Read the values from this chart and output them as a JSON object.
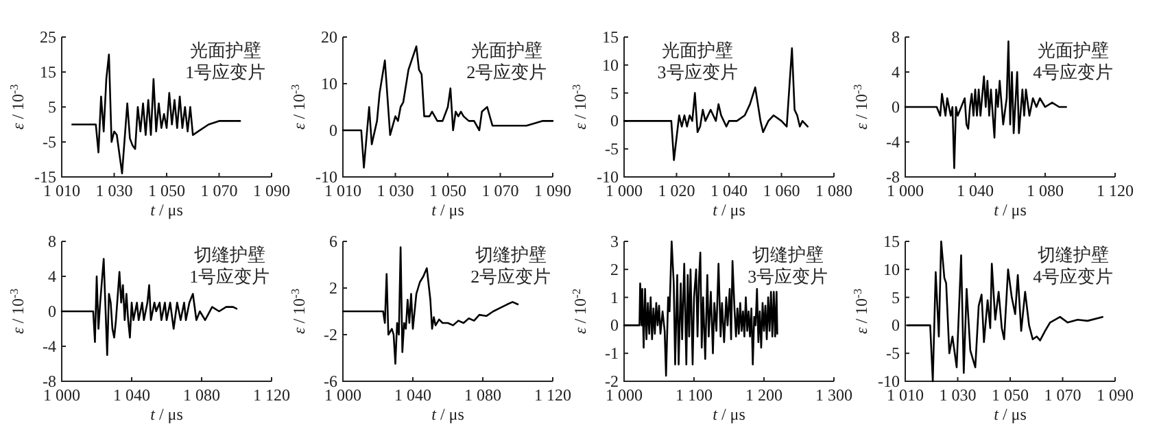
{
  "chart_data": [
    {
      "type": "line",
      "xlabel": "*t* / μs",
      "ylabel": "*ε* / 10$^{-3}$",
      "annotations": [
        "光面护壁",
        "1号应变片"
      ],
      "color": "#000000",
      "xlim": [
        1010,
        1090
      ],
      "ylim": [
        -15,
        25
      ],
      "xticks": [
        {
          "value": 1010,
          "label": "1 010"
        },
        {
          "value": 1030,
          "label": "1 030"
        },
        {
          "value": 1050,
          "label": "1 050"
        },
        {
          "value": 1070,
          "label": "1 070"
        },
        {
          "value": 1090,
          "label": "1 090"
        }
      ],
      "yticks": [
        -15,
        -5,
        5,
        15,
        25
      ],
      "x": [
        1014,
        1023,
        1024,
        1025,
        1026,
        1027,
        1028,
        1029,
        1030,
        1031,
        1033,
        1035,
        1036,
        1037,
        1038,
        1039,
        1040,
        1041,
        1042,
        1043,
        1044,
        1045,
        1046,
        1047,
        1048,
        1049,
        1050,
        1051,
        1052,
        1053,
        1054,
        1055,
        1056,
        1057,
        1058,
        1059,
        1060,
        1062,
        1066,
        1070,
        1074,
        1078
      ],
      "values": [
        0,
        0,
        -8,
        8,
        -2,
        13,
        20,
        -5,
        -2,
        -3,
        -14,
        6,
        -4,
        -6,
        -7,
        5,
        -2,
        6,
        -3,
        7,
        -3,
        13,
        -2,
        6,
        -1,
        3,
        -1,
        9,
        0,
        7,
        -1,
        8,
        -1,
        5,
        -2,
        5,
        -3,
        -2,
        0,
        1,
        1,
        1
      ]
    },
    {
      "type": "line",
      "xlabel": "*t* / μs",
      "ylabel": "*ε* / 10$^{-3}$",
      "annotations": [
        "光面护壁",
        "2号应变片"
      ],
      "color": "#000000",
      "xlim": [
        1010,
        1090
      ],
      "ylim": [
        -10,
        20
      ],
      "xticks": [
        {
          "value": 1010,
          "label": "1 010"
        },
        {
          "value": 1030,
          "label": "1 030"
        },
        {
          "value": 1050,
          "label": "1 050"
        },
        {
          "value": 1070,
          "label": "1 070"
        },
        {
          "value": 1090,
          "label": "1 090"
        }
      ],
      "yticks": [
        -10,
        0,
        10,
        20
      ],
      "x": [
        1010,
        1017,
        1018,
        1020,
        1021,
        1023,
        1024,
        1026,
        1028,
        1030,
        1031,
        1032,
        1033,
        1035,
        1038,
        1039,
        1040,
        1041,
        1043,
        1044,
        1046,
        1048,
        1050,
        1051,
        1052,
        1053,
        1054,
        1055,
        1056,
        1058,
        1060,
        1062,
        1063,
        1065,
        1067,
        1072,
        1080,
        1086,
        1090
      ],
      "values": [
        0,
        0,
        -8,
        5,
        -3,
        2,
        8,
        15,
        -1,
        3,
        2,
        5,
        6,
        13,
        18,
        13,
        12,
        3,
        3,
        4,
        2,
        2,
        5,
        9,
        0,
        4,
        3,
        4,
        3,
        2,
        2,
        0,
        4,
        5,
        1,
        1,
        1,
        2,
        2
      ]
    },
    {
      "type": "line",
      "xlabel": "*t* / μs",
      "ylabel": "*ε* / 10$^{-3}$",
      "annotations": [
        "光面护壁",
        "3号应变片"
      ],
      "color": "#000000",
      "xlim": [
        1000,
        1080
      ],
      "ylim": [
        -10,
        15
      ],
      "xticks": [
        {
          "value": 1000,
          "label": "1 000"
        },
        {
          "value": 1020,
          "label": "1 020"
        },
        {
          "value": 1040,
          "label": "1 040"
        },
        {
          "value": 1060,
          "label": "1 060"
        },
        {
          "value": 1080,
          "label": "1 080"
        }
      ],
      "yticks": [
        -10,
        -5,
        0,
        5,
        10,
        15
      ],
      "x": [
        1000,
        1018,
        1019,
        1020,
        1021,
        1022,
        1023,
        1024,
        1025,
        1026,
        1027,
        1028,
        1029,
        1030,
        1031,
        1033,
        1034,
        1035,
        1036,
        1037,
        1038,
        1039,
        1040,
        1043,
        1046,
        1048,
        1050,
        1051,
        1052,
        1053,
        1054,
        1055,
        1057,
        1060,
        1062,
        1063,
        1064,
        1065,
        1066,
        1067,
        1068,
        1070
      ],
      "values": [
        0,
        0,
        -7,
        -3,
        1,
        -1,
        1,
        -1,
        1,
        0,
        5,
        -2,
        -1,
        2,
        0,
        2,
        1,
        0,
        3,
        1,
        0,
        -1,
        0,
        0,
        1,
        3,
        6,
        3,
        0,
        -2,
        -1,
        0,
        1,
        0,
        -1,
        6,
        13,
        2,
        1,
        -1,
        0,
        -1
      ]
    },
    {
      "type": "line",
      "xlabel": "*t* / μs",
      "ylabel": "*ε* / 10$^{-3}$",
      "annotations": [
        "光面护壁",
        "4号应变片"
      ],
      "color": "#000000",
      "xlim": [
        1000,
        1120
      ],
      "ylim": [
        -8,
        8
      ],
      "xticks": [
        {
          "value": 1000,
          "label": "1 000"
        },
        {
          "value": 1040,
          "label": "1 040"
        },
        {
          "value": 1080,
          "label": "1 080"
        },
        {
          "value": 1120,
          "label": "1 120"
        }
      ],
      "yticks": [
        -8,
        -4,
        0,
        4,
        8
      ],
      "x": [
        1000,
        1018,
        1020,
        1021,
        1023,
        1024,
        1026,
        1027,
        1028,
        1029,
        1030,
        1032,
        1034,
        1035,
        1036,
        1037,
        1038,
        1039,
        1040,
        1041,
        1042,
        1043,
        1045,
        1046,
        1047,
        1048,
        1049,
        1051,
        1052,
        1053,
        1054,
        1056,
        1058,
        1059,
        1060,
        1061,
        1062,
        1064,
        1065,
        1067,
        1068,
        1069,
        1071,
        1073,
        1075,
        1077,
        1080,
        1084,
        1088,
        1092
      ],
      "values": [
        0,
        0,
        -1,
        1.5,
        -1,
        1,
        -1,
        0,
        -7,
        0,
        -1,
        0,
        1,
        -2,
        -2.5,
        0,
        1.5,
        -1,
        2,
        -1,
        2,
        -1,
        3.5,
        0,
        3,
        -1,
        2,
        -3.5,
        2,
        0,
        3,
        -2,
        1,
        7.5,
        -2,
        4,
        -3,
        4,
        -3,
        2,
        -1,
        2,
        -1,
        1,
        0,
        1,
        0,
        0.5,
        0,
        0
      ]
    },
    {
      "type": "line",
      "xlabel": "*t* / μs",
      "ylabel": "*ε* / 10$^{-3}$",
      "annotations": [
        "切缝护壁",
        "1号应变片"
      ],
      "color": "#000000",
      "xlim": [
        1000,
        1120
      ],
      "ylim": [
        -8,
        8
      ],
      "xticks": [
        {
          "value": 1000,
          "label": "1 000"
        },
        {
          "value": 1040,
          "label": "1 040"
        },
        {
          "value": 1080,
          "label": "1 080"
        },
        {
          "value": 1120,
          "label": "1 120"
        }
      ],
      "yticks": [
        -8,
        -4,
        0,
        4,
        8
      ],
      "x": [
        1000,
        1018,
        1019,
        1020,
        1021,
        1022,
        1024,
        1026,
        1027,
        1028,
        1029,
        1030,
        1031,
        1033,
        1034,
        1035,
        1036,
        1037,
        1038,
        1039,
        1040,
        1041,
        1043,
        1044,
        1046,
        1047,
        1049,
        1050,
        1051,
        1053,
        1054,
        1056,
        1057,
        1059,
        1060,
        1062,
        1064,
        1066,
        1068,
        1070,
        1071,
        1073,
        1075,
        1077,
        1079,
        1082,
        1086,
        1090,
        1094,
        1098,
        1100
      ],
      "values": [
        0,
        0,
        -3.5,
        4,
        -2,
        1,
        6,
        -5,
        2,
        1,
        -2,
        -3,
        -1,
        4.5,
        1,
        3,
        -1,
        2,
        -1,
        -3,
        1,
        -1,
        1,
        -1,
        1,
        -1,
        1,
        3,
        -1,
        1,
        0,
        1,
        -1,
        1,
        -1,
        1,
        -2,
        1,
        -1,
        1,
        -1,
        1,
        2,
        -1,
        0,
        -1,
        0.5,
        0,
        0.5,
        0.5,
        0.3
      ]
    },
    {
      "type": "line",
      "xlabel": "*t* / μs",
      "ylabel": "*ε* / 10$^{-3}$",
      "annotations": [
        "切缝护壁",
        "2号应变片"
      ],
      "color": "#000000",
      "xlim": [
        1000,
        1120
      ],
      "ylim": [
        -6,
        6
      ],
      "xticks": [
        {
          "value": 1000,
          "label": "1 000"
        },
        {
          "value": 1040,
          "label": "1 040"
        },
        {
          "value": 1080,
          "label": "1 080"
        },
        {
          "value": 1120,
          "label": "1 120"
        }
      ],
      "yticks": [
        -6,
        -2,
        2,
        6
      ],
      "x": [
        1000,
        1023,
        1024,
        1025,
        1026,
        1028,
        1029,
        1030,
        1031,
        1032,
        1033,
        1034,
        1035,
        1036,
        1037,
        1038,
        1039,
        1040,
        1041,
        1042,
        1044,
        1046,
        1048,
        1050,
        1051,
        1052,
        1053,
        1055,
        1057,
        1060,
        1063,
        1066,
        1069,
        1072,
        1075,
        1078,
        1082,
        1086,
        1090,
        1094,
        1097,
        1100
      ],
      "values": [
        0,
        0,
        -1,
        3.2,
        -2,
        -1.5,
        -2,
        -4.5,
        -1,
        -2,
        5.5,
        -3.5,
        -1,
        -1.5,
        1,
        -1,
        1.5,
        -1.5,
        0,
        1.5,
        2.5,
        3,
        3.7,
        1,
        -1.5,
        -0.5,
        -1.2,
        -0.7,
        -1,
        -1,
        -1.2,
        -0.8,
        -1,
        -0.6,
        -0.8,
        -0.3,
        -0.4,
        0,
        0.3,
        0.6,
        0.8,
        0.6
      ]
    },
    {
      "type": "line",
      "xlabel": "*t* / μs",
      "ylabel": "*ε* / 10$^{-2}$",
      "annotations": [
        "切缝护壁",
        "3号应变片"
      ],
      "color": "#000000",
      "xlim": [
        1000,
        1300
      ],
      "ylim": [
        -2,
        3
      ],
      "xticks": [
        {
          "value": 1000,
          "label": "1 000"
        },
        {
          "value": 1100,
          "label": "1 100"
        },
        {
          "value": 1200,
          "label": "1 200"
        },
        {
          "value": 1300,
          "label": "1 300"
        }
      ],
      "yticks": [
        -2,
        -1,
        0,
        1,
        2,
        3
      ],
      "x": [
        1000,
        1022,
        1023,
        1025,
        1026,
        1028,
        1030,
        1032,
        1034,
        1036,
        1038,
        1040,
        1042,
        1044,
        1046,
        1048,
        1050,
        1052,
        1055,
        1058,
        1060,
        1063,
        1065,
        1068,
        1071,
        1073,
        1076,
        1078,
        1081,
        1083,
        1086,
        1089,
        1091,
        1093,
        1095,
        1098,
        1100,
        1103,
        1105,
        1107,
        1109,
        1111,
        1113,
        1116,
        1119,
        1121,
        1124,
        1127,
        1129,
        1132,
        1135,
        1138,
        1140,
        1143,
        1146,
        1148,
        1151,
        1153,
        1155,
        1158,
        1160,
        1162,
        1164,
        1166,
        1168,
        1170,
        1172,
        1174,
        1176,
        1178,
        1180,
        1182,
        1184,
        1186,
        1188,
        1190,
        1192,
        1194,
        1196,
        1198,
        1200,
        1202,
        1204,
        1206,
        1208,
        1210,
        1212,
        1214,
        1216,
        1218,
        1219
      ],
      "values": [
        0,
        0,
        1.5,
        0,
        1.3,
        -0.8,
        1.3,
        -0.5,
        0.8,
        -0.3,
        1,
        -0.5,
        0.6,
        -0.3,
        0.8,
        0,
        0.7,
        -0.3,
        0.5,
        -0.2,
        -1.8,
        1,
        0.5,
        3,
        1.5,
        -1.4,
        1.8,
        -1.4,
        1.5,
        -0.5,
        2.2,
        -1.4,
        1.8,
        -0.4,
        2,
        -1.4,
        1,
        2,
        -0.4,
        1.6,
        2.6,
        -0.8,
        1,
        -1.2,
        1.8,
        -0.4,
        1.2,
        -1,
        0.8,
        -0.2,
        2.2,
        -0.4,
        0.8,
        -0.6,
        1,
        0,
        1.3,
        -0.5,
        2.3,
        0.5,
        -0.4,
        0.6,
        -0.3,
        0.8,
        -0.2,
        0.5,
        -0.4,
        1,
        -0.2,
        0.5,
        -0.4,
        0.6,
        -1.4,
        0.3,
        0,
        1.3,
        -0.6,
        0.5,
        -0.8,
        0.8,
        -0.2,
        0.7,
        -0.5,
        1,
        -0.2,
        1.2,
        -0.4,
        1.2,
        -0.4,
        1.2,
        -0.3
      ]
    },
    {
      "type": "line",
      "xlabel": "*t* / μs",
      "ylabel": "*ε* / 10$^{-3}$",
      "annotations": [
        "切缝护壁",
        "4号应变片"
      ],
      "color": "#000000",
      "xlim": [
        1010,
        1090
      ],
      "ylim": [
        -10,
        15
      ],
      "xticks": [
        {
          "value": 1010,
          "label": "1 010"
        },
        {
          "value": 1030,
          "label": "1 030"
        },
        {
          "value": 1050,
          "label": "1 050"
        },
        {
          "value": 1070,
          "label": "1 070"
        },
        {
          "value": 1090,
          "label": "1 090"
        }
      ],
      "yticks": [
        -10,
        -5,
        0,
        5,
        10,
        15
      ],
      "x": [
        1011,
        1019.5,
        1020.5,
        1021.6,
        1022.8,
        1023.7,
        1024.9,
        1025.6,
        1026.8,
        1028,
        1029.6,
        1031.3,
        1032.3,
        1033.4,
        1034.8,
        1036.7,
        1038,
        1039.1,
        1040,
        1041.4,
        1042.4,
        1043,
        1044.3,
        1045.6,
        1046.8,
        1047.7,
        1049.2,
        1050.6,
        1051.9,
        1052.9,
        1054.2,
        1055.7,
        1057.2,
        1058.6,
        1060.1,
        1061.4,
        1063.3,
        1065.2,
        1069,
        1071.9,
        1075.7,
        1079.5,
        1085.2
      ],
      "values": [
        0,
        0,
        -10,
        9.5,
        -2,
        15,
        8.5,
        7.5,
        -5,
        -2,
        -7.5,
        12.5,
        -8.5,
        6.5,
        -4.5,
        -7.5,
        3.5,
        5.5,
        -3,
        4.5,
        -0.5,
        11,
        1,
        6,
        -0.5,
        -2.5,
        10,
        5,
        2,
        9,
        -1,
        6,
        0,
        -2.5,
        -2,
        -2.7,
        -1,
        0.5,
        1.5,
        0.5,
        1,
        0.8,
        1.5
      ]
    }
  ]
}
